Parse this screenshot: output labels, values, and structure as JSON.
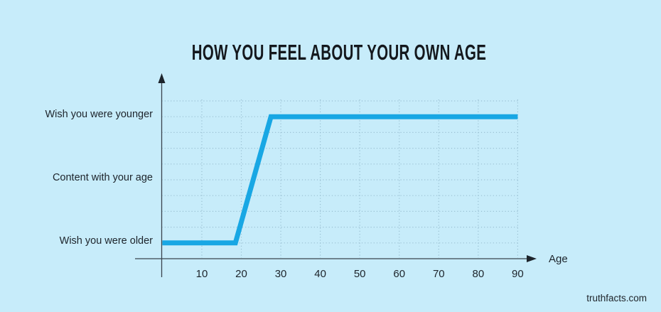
{
  "page": {
    "background": "#c7ecfa",
    "watermark": "truthfacts.com"
  },
  "chart_data": {
    "type": "line",
    "title": "HOW YOU FEEL ABOUT YOUR OWN AGE",
    "xlabel": "Age",
    "ylabel": "",
    "x_ticks": [
      10,
      20,
      30,
      40,
      50,
      60,
      70,
      80,
      90
    ],
    "xlim": [
      0,
      90
    ],
    "y_categories": [
      "Wish you were older",
      "Content with your age",
      "Wish you were younger"
    ],
    "series": [
      {
        "name": "feeling-about-own-age",
        "points": [
          [
            0,
            "Wish you were older"
          ],
          [
            18.5,
            "Wish you were older"
          ],
          [
            27.5,
            "Wish you were younger"
          ],
          [
            90,
            "Wish you were younger"
          ]
        ]
      }
    ],
    "grid": "dotted",
    "legend_position": "none",
    "line_color": "#18a7e4",
    "axis_color": "#39444d",
    "grid_color": "#8fb6c9"
  }
}
